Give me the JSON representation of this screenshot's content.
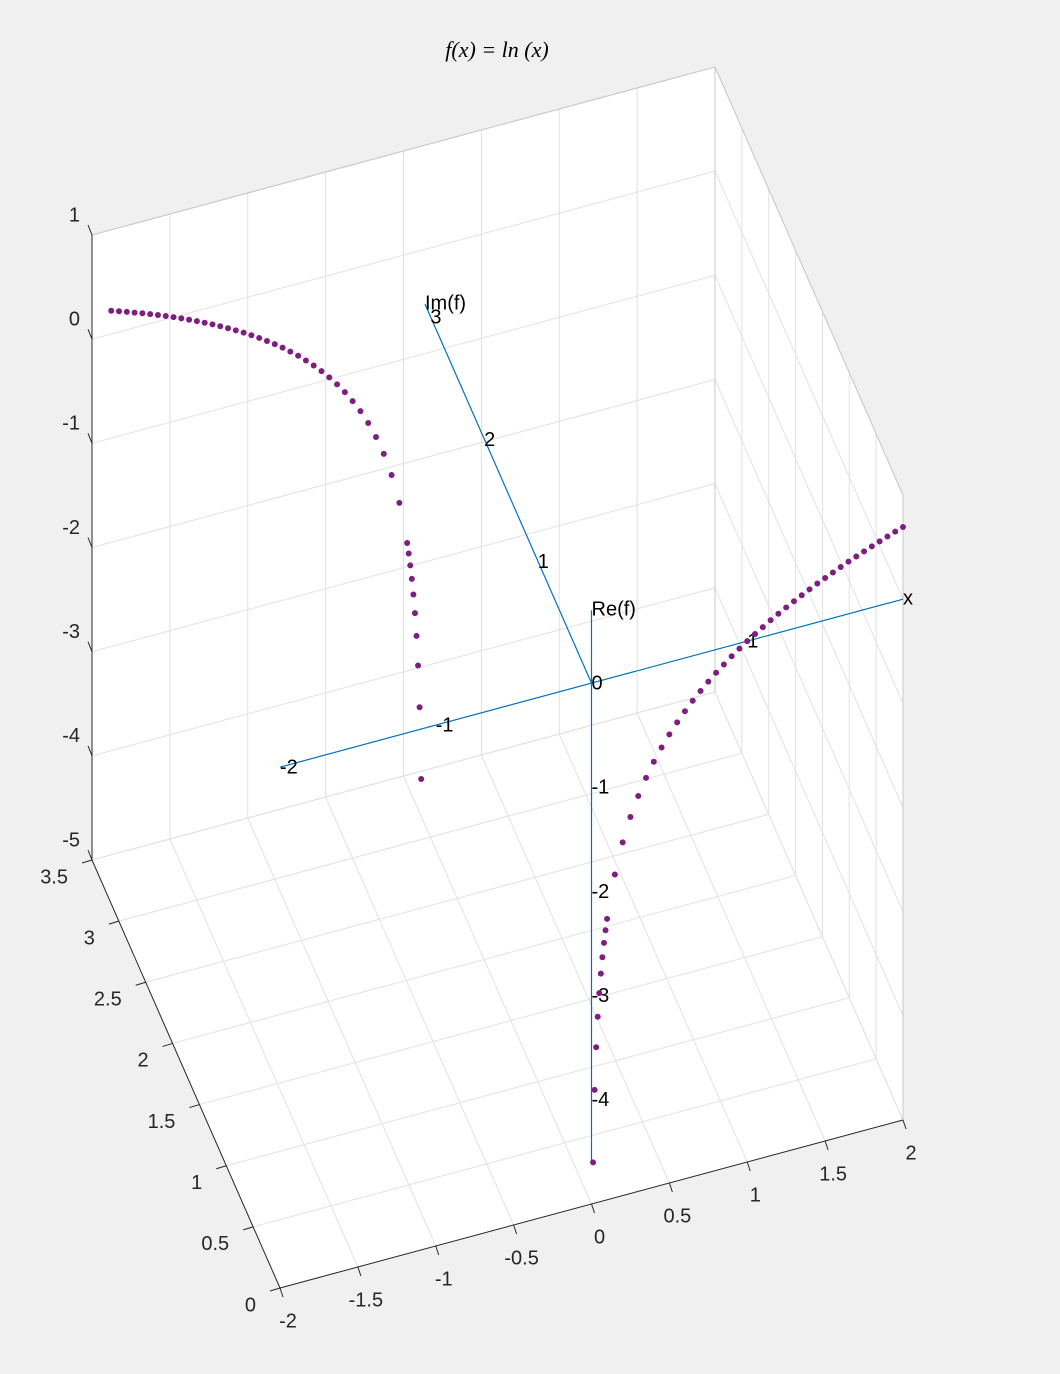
{
  "chart_data": {
    "type": "scatter3d",
    "title": "f(x) = ln (x)",
    "xlim": [
      -2,
      2
    ],
    "ylim": [
      0,
      3.5
    ],
    "zlim": [
      -5,
      1
    ],
    "xticks": [
      -2,
      -1.5,
      -1,
      -0.5,
      0,
      0.5,
      1,
      1.5,
      2
    ],
    "yticks": [
      0,
      0.5,
      1,
      1.5,
      2,
      2.5,
      3,
      3.5
    ],
    "zticks": [
      -5,
      -4,
      -3,
      -2,
      -1,
      0,
      1
    ],
    "grid": true,
    "series": [
      {
        "color": "#7e1e80",
        "x": [
          0.01,
          0.02,
          0.03,
          0.04,
          0.05,
          0.06,
          0.07,
          0.08,
          0.09,
          0.1,
          0.15,
          0.2,
          0.25,
          0.3,
          0.35,
          0.4,
          0.45,
          0.5,
          0.55,
          0.6,
          0.65,
          0.7,
          0.75,
          0.8,
          0.85,
          0.9,
          0.95,
          1,
          1.05,
          1.1,
          1.15,
          1.2,
          1.25,
          1.3,
          1.35,
          1.4,
          1.45,
          1.5,
          1.55,
          1.6,
          1.65,
          1.7,
          1.75,
          1.8,
          1.85,
          1.9,
          1.95,
          2
        ],
        "re": [
          -4.605,
          -3.912,
          -3.507,
          -3.219,
          -2.996,
          -2.813,
          -2.659,
          -2.526,
          -2.408,
          -2.303,
          -1.897,
          -1.609,
          -1.386,
          -1.204,
          -1.05,
          -0.916,
          -0.799,
          -0.693,
          -0.598,
          -0.511,
          -0.431,
          -0.357,
          -0.288,
          -0.223,
          -0.163,
          -0.105,
          -0.051,
          0,
          0.049,
          0.095,
          0.14,
          0.182,
          0.223,
          0.262,
          0.3,
          0.336,
          0.372,
          0.405,
          0.438,
          0.47,
          0.501,
          0.531,
          0.56,
          0.588,
          0.615,
          0.642,
          0.668,
          0.693
        ],
        "im": [
          0,
          0,
          0,
          0,
          0,
          0,
          0,
          0,
          0,
          0,
          0,
          0,
          0,
          0,
          0,
          0,
          0,
          0,
          0,
          0,
          0,
          0,
          0,
          0,
          0,
          0,
          0,
          0,
          0,
          0,
          0,
          0,
          0,
          0,
          0,
          0,
          0,
          0,
          0,
          0,
          0,
          0,
          0,
          0,
          0,
          0,
          0,
          0
        ]
      },
      {
        "color": "#7e1e80",
        "x": [
          -0.01,
          -0.02,
          -0.03,
          -0.04,
          -0.05,
          -0.06,
          -0.07,
          -0.08,
          -0.09,
          -0.1,
          -0.15,
          -0.2,
          -0.25,
          -0.3,
          -0.35,
          -0.4,
          -0.45,
          -0.5,
          -0.55,
          -0.6,
          -0.65,
          -0.7,
          -0.75,
          -0.8,
          -0.85,
          -0.9,
          -0.95,
          -1,
          -1.05,
          -1.1,
          -1.15,
          -1.2,
          -1.25,
          -1.3,
          -1.35,
          -1.4,
          -1.45,
          -1.5,
          -1.55,
          -1.6,
          -1.65,
          -1.7,
          -1.75,
          -1.8,
          -1.85,
          -1.9,
          -1.95,
          -2
        ],
        "re": [
          -4.605,
          -3.912,
          -3.507,
          -3.219,
          -2.996,
          -2.813,
          -2.659,
          -2.526,
          -2.408,
          -2.303,
          -1.897,
          -1.609,
          -1.386,
          -1.204,
          -1.05,
          -0.916,
          -0.799,
          -0.693,
          -0.598,
          -0.511,
          -0.431,
          -0.357,
          -0.288,
          -0.223,
          -0.163,
          -0.105,
          -0.051,
          0,
          0.049,
          0.095,
          0.14,
          0.182,
          0.223,
          0.262,
          0.3,
          0.336,
          0.372,
          0.405,
          0.438,
          0.47,
          0.501,
          0.531,
          0.56,
          0.588,
          0.615,
          0.642,
          0.668,
          0.693
        ],
        "im": [
          3.142,
          3.142,
          3.142,
          3.142,
          3.142,
          3.142,
          3.142,
          3.142,
          3.142,
          3.142,
          3.142,
          3.142,
          3.142,
          3.142,
          3.142,
          3.142,
          3.142,
          3.142,
          3.142,
          3.142,
          3.142,
          3.142,
          3.142,
          3.142,
          3.142,
          3.142,
          3.142,
          3.142,
          3.142,
          3.142,
          3.142,
          3.142,
          3.142,
          3.142,
          3.142,
          3.142,
          3.142,
          3.142,
          3.142,
          3.142,
          3.142,
          3.142,
          3.142,
          3.142,
          3.142,
          3.142,
          3.142,
          3.142
        ]
      }
    ],
    "annotation_axes": [
      {
        "label": "x",
        "axis": "x",
        "range": [
          -2,
          2
        ],
        "ticks": [
          -2,
          -1,
          0,
          1
        ],
        "color": "#0072bd"
      },
      {
        "label": "Im(f)",
        "axis": "y",
        "range": [
          0,
          3.1
        ],
        "ticks": [
          1,
          2,
          3
        ],
        "color": "#0072bd"
      },
      {
        "label": "Re(f)",
        "axis": "z",
        "range": [
          -4.6,
          0.7
        ],
        "ticks": [
          -1,
          -2,
          -3,
          -4
        ],
        "color": "#0072bd"
      }
    ]
  }
}
